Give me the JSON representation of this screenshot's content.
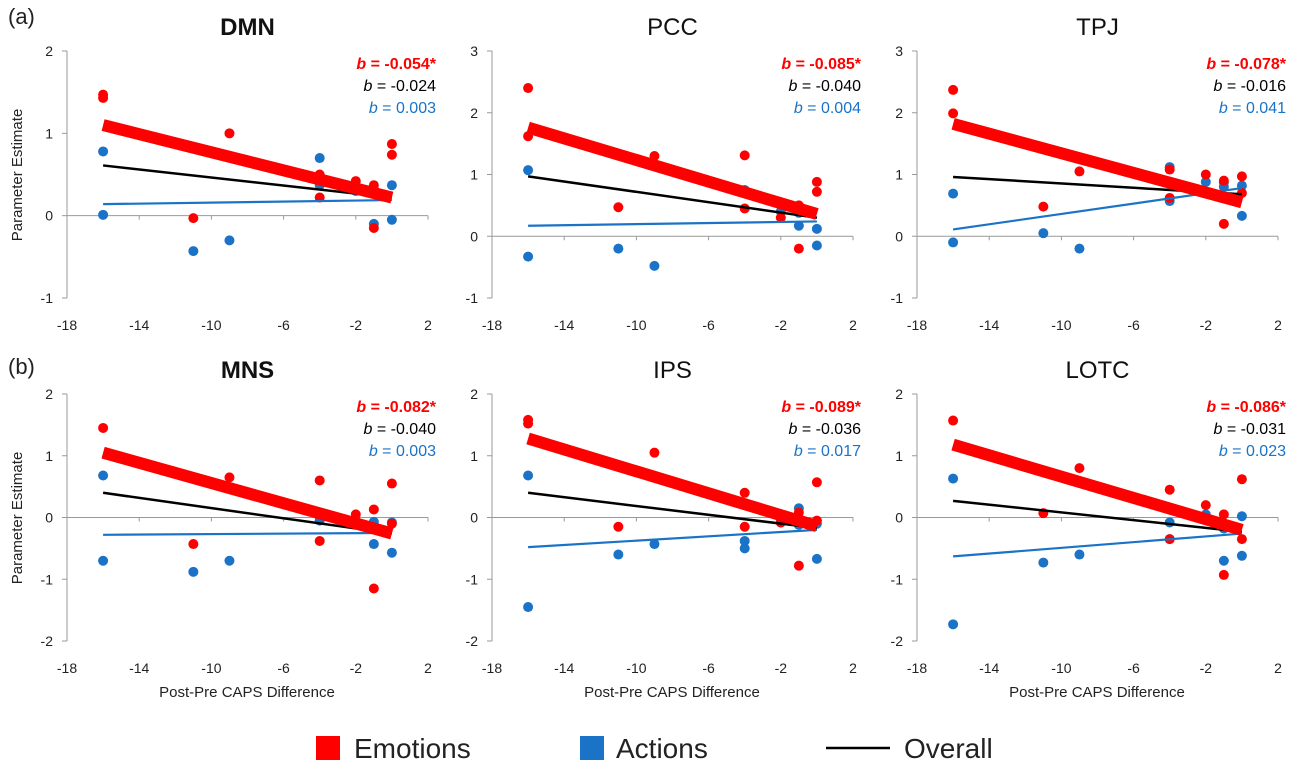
{
  "figure": {
    "row_labels": [
      "(a)",
      "(b)"
    ],
    "y_axis_label": "Parameter Estimate",
    "x_axis_label": "Post-Pre CAPS Difference",
    "legend": [
      {
        "label": "Emotions",
        "color": "#ff0000"
      },
      {
        "label": "Actions",
        "color": "#1a73c6"
      },
      {
        "label": "Overall",
        "color": "#000000"
      }
    ]
  },
  "chart_data": [
    {
      "type": "scatter",
      "title": "DMN",
      "title_bold": true,
      "xlim": [
        -18,
        2
      ],
      "xticks": [
        -18,
        -14,
        -10,
        -6,
        -2,
        2
      ],
      "ylim": [
        -1,
        2
      ],
      "yticks": [
        -1,
        0,
        1,
        2
      ],
      "coefficients": [
        {
          "text": "b = -0.054*",
          "series": "Emotions"
        },
        {
          "text": "b = -0.024",
          "series": "Overall"
        },
        {
          "text": "b = 0.003",
          "series": "Actions"
        }
      ],
      "series": [
        {
          "name": "Emotions",
          "x": [
            -16,
            -16,
            -11,
            -9,
            -4,
            -4,
            -2,
            -1,
            -1,
            0,
            0
          ],
          "y": [
            1.47,
            1.43,
            -0.03,
            1.0,
            0.5,
            0.22,
            0.42,
            0.37,
            -0.15,
            0.87,
            0.74
          ],
          "fit": [
            [
              -16,
              1.1
            ],
            [
              0,
              0.22
            ]
          ]
        },
        {
          "name": "Actions",
          "x": [
            -16,
            -16,
            -11,
            -9,
            -4,
            -4,
            -2,
            -1,
            -1,
            0,
            0
          ],
          "y": [
            0.78,
            0.01,
            -0.43,
            -0.3,
            0.7,
            0.37,
            0.3,
            0.32,
            -0.1,
            0.37,
            -0.05
          ],
          "fit": [
            [
              -16,
              0.14
            ],
            [
              0,
              0.19
            ]
          ]
        },
        {
          "name": "Overall",
          "fit": [
            [
              -16,
              0.61
            ],
            [
              0,
              0.22
            ]
          ]
        }
      ]
    },
    {
      "type": "scatter",
      "title": "PCC",
      "title_bold": false,
      "xlim": [
        -18,
        2
      ],
      "xticks": [
        -18,
        -14,
        -10,
        -6,
        -2,
        2
      ],
      "ylim": [
        -1,
        3
      ],
      "yticks": [
        -1,
        0,
        1,
        2,
        3
      ],
      "coefficients": [
        {
          "text": "b = -0.085*",
          "series": "Emotions"
        },
        {
          "text": "b = -0.040",
          "series": "Overall"
        },
        {
          "text": "b = 0.004",
          "series": "Actions"
        }
      ],
      "series": [
        {
          "name": "Emotions",
          "x": [
            -16,
            -16,
            -11,
            -9,
            -4,
            -4,
            -2,
            -1,
            -1,
            0,
            0
          ],
          "y": [
            2.4,
            1.62,
            0.47,
            1.3,
            1.31,
            0.45,
            0.3,
            0.5,
            -0.2,
            0.88,
            0.72
          ],
          "fit": [
            [
              -16,
              1.76
            ],
            [
              0,
              0.36
            ]
          ]
        },
        {
          "name": "Actions",
          "x": [
            -16,
            -16,
            -11,
            -9,
            -4,
            -4,
            -2,
            -1,
            -1,
            0,
            0
          ],
          "y": [
            1.07,
            -0.33,
            -0.2,
            -0.48,
            0.75,
            0.7,
            0.4,
            0.17,
            0.38,
            0.12,
            -0.15
          ],
          "fit": [
            [
              -16,
              0.17
            ],
            [
              0,
              0.24
            ]
          ]
        },
        {
          "name": "Overall",
          "fit": [
            [
              -16,
              0.97
            ],
            [
              0,
              0.3
            ]
          ]
        }
      ]
    },
    {
      "type": "scatter",
      "title": "TPJ",
      "title_bold": false,
      "xlim": [
        -18,
        2
      ],
      "xticks": [
        -18,
        -14,
        -10,
        -6,
        -2,
        2
      ],
      "ylim": [
        -1,
        3
      ],
      "yticks": [
        -1,
        0,
        1,
        2,
        3
      ],
      "coefficients": [
        {
          "text": "b = -0.078*",
          "series": "Emotions"
        },
        {
          "text": "b = -0.016",
          "series": "Overall"
        },
        {
          "text": "b = 0.041",
          "series": "Actions"
        }
      ],
      "series": [
        {
          "name": "Emotions",
          "x": [
            -16,
            -16,
            -11,
            -9,
            -4,
            -4,
            -2,
            -1,
            -1,
            0,
            0
          ],
          "y": [
            2.37,
            1.99,
            0.48,
            1.05,
            1.08,
            0.62,
            1.0,
            0.2,
            0.9,
            0.97,
            0.7
          ],
          "fit": [
            [
              -16,
              1.82
            ],
            [
              0,
              0.55
            ]
          ]
        },
        {
          "name": "Actions",
          "x": [
            -16,
            -16,
            -11,
            -9,
            -4,
            -4,
            -2,
            -1,
            -1,
            0,
            0
          ],
          "y": [
            0.69,
            -0.1,
            0.05,
            -0.2,
            1.12,
            0.57,
            0.88,
            0.87,
            0.8,
            0.82,
            0.33
          ],
          "fit": [
            [
              -16,
              0.11
            ],
            [
              0,
              0.78
            ]
          ]
        },
        {
          "name": "Overall",
          "fit": [
            [
              -16,
              0.96
            ],
            [
              0,
              0.68
            ]
          ]
        }
      ]
    },
    {
      "type": "scatter",
      "title": "MNS",
      "title_bold": true,
      "xlim": [
        -18,
        2
      ],
      "xticks": [
        -18,
        -14,
        -10,
        -6,
        -2,
        2
      ],
      "ylim": [
        -2,
        2
      ],
      "yticks": [
        -2,
        -1,
        0,
        1,
        2
      ],
      "coefficients": [
        {
          "text": "b = -0.082*",
          "series": "Emotions"
        },
        {
          "text": "b = -0.040",
          "series": "Overall"
        },
        {
          "text": "b = 0.003",
          "series": "Actions"
        }
      ],
      "series": [
        {
          "name": "Emotions",
          "x": [
            -16,
            -11,
            -9,
            -4,
            -4,
            -2,
            -1,
            -1,
            0,
            0
          ],
          "y": [
            1.45,
            -0.43,
            0.65,
            0.6,
            -0.38,
            0.05,
            0.13,
            -1.15,
            0.55,
            -0.1
          ],
          "fit": [
            [
              -16,
              1.05
            ],
            [
              0,
              -0.26
            ]
          ]
        },
        {
          "name": "Actions",
          "x": [
            -16,
            -16,
            -11,
            -9,
            -4,
            -4,
            -2,
            -1,
            -1,
            0,
            0
          ],
          "y": [
            0.68,
            -0.7,
            -0.88,
            -0.7,
            -0.05,
            0.0,
            -0.05,
            -0.43,
            -0.07,
            -0.08,
            -0.57
          ],
          "fit": [
            [
              -16,
              -0.28
            ],
            [
              0,
              -0.25
            ]
          ]
        },
        {
          "name": "Overall",
          "fit": [
            [
              -16,
              0.4
            ],
            [
              0,
              -0.26
            ]
          ]
        }
      ]
    },
    {
      "type": "scatter",
      "title": "IPS",
      "title_bold": false,
      "xlim": [
        -18,
        2
      ],
      "xticks": [
        -18,
        -14,
        -10,
        -6,
        -2,
        2
      ],
      "ylim": [
        -2,
        2
      ],
      "yticks": [
        -2,
        -1,
        0,
        1,
        2
      ],
      "coefficients": [
        {
          "text": "b = -0.089*",
          "series": "Emotions"
        },
        {
          "text": "b = -0.036",
          "series": "Overall"
        },
        {
          "text": "b = 0.017",
          "series": "Actions"
        }
      ],
      "series": [
        {
          "name": "Emotions",
          "x": [
            -16,
            -16,
            -11,
            -9,
            -4,
            -4,
            -2,
            -1,
            -1,
            0,
            0
          ],
          "y": [
            1.58,
            1.52,
            -0.15,
            1.05,
            0.4,
            -0.15,
            -0.08,
            0.08,
            -0.78,
            0.57,
            -0.05
          ],
          "fit": [
            [
              -16,
              1.28
            ],
            [
              0,
              -0.14
            ]
          ]
        },
        {
          "name": "Actions",
          "x": [
            -16,
            -16,
            -11,
            -9,
            -4,
            -4,
            -2,
            -1,
            -1,
            0,
            0
          ],
          "y": [
            0.68,
            -1.45,
            -0.6,
            -0.43,
            -0.38,
            -0.5,
            -0.08,
            0.15,
            -0.12,
            -0.1,
            -0.67
          ],
          "fit": [
            [
              -16,
              -0.48
            ],
            [
              0,
              -0.2
            ]
          ]
        },
        {
          "name": "Overall",
          "fit": [
            [
              -16,
              0.4
            ],
            [
              0,
              -0.17
            ]
          ]
        }
      ]
    },
    {
      "type": "scatter",
      "title": "LOTC",
      "title_bold": false,
      "xlim": [
        -18,
        2
      ],
      "xticks": [
        -18,
        -14,
        -10,
        -6,
        -2,
        2
      ],
      "ylim": [
        -2,
        2
      ],
      "yticks": [
        -2,
        -1,
        0,
        1,
        2
      ],
      "coefficients": [
        {
          "text": "b = -0.086*",
          "series": "Emotions"
        },
        {
          "text": "b = -0.031",
          "series": "Overall"
        },
        {
          "text": "b = 0.023",
          "series": "Actions"
        }
      ],
      "series": [
        {
          "name": "Emotions",
          "x": [
            -16,
            -11,
            -9,
            -4,
            -4,
            -2,
            -1,
            -1,
            0,
            0
          ],
          "y": [
            1.57,
            0.07,
            0.8,
            0.45,
            -0.35,
            0.2,
            0.05,
            -0.93,
            0.62,
            -0.35
          ],
          "fit": [
            [
              -16,
              1.18
            ],
            [
              0,
              -0.2
            ]
          ]
        },
        {
          "name": "Actions",
          "x": [
            -16,
            -16,
            -11,
            -9,
            -4,
            -4,
            -2,
            -1,
            -1,
            0,
            0
          ],
          "y": [
            0.63,
            -1.73,
            -0.73,
            -0.6,
            -0.08,
            -0.35,
            0.05,
            -0.18,
            -0.7,
            0.02,
            -0.62
          ],
          "fit": [
            [
              -16,
              -0.63
            ],
            [
              0,
              -0.26
            ]
          ]
        },
        {
          "name": "Overall",
          "fit": [
            [
              -16,
              0.27
            ],
            [
              0,
              -0.23
            ]
          ]
        }
      ]
    }
  ]
}
